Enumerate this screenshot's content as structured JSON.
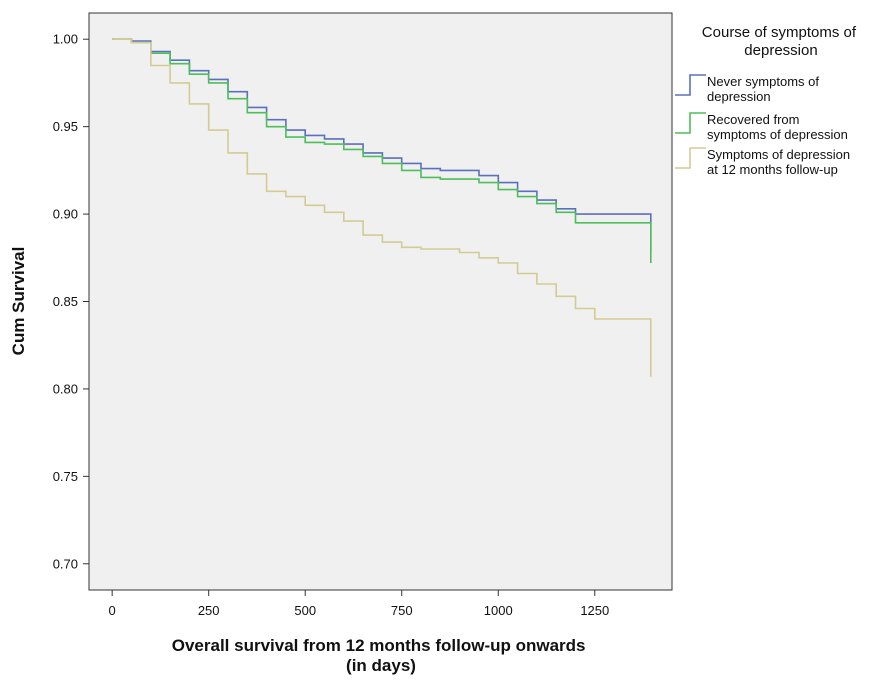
{
  "chart_data": {
    "type": "line",
    "subtype": "step",
    "xlabel_lines": [
      "Overall survival from 12 months follow-up onwards",
      "(in days)"
    ],
    "ylabel": "Cum Survival",
    "xlim": [
      -60,
      1450
    ],
    "ylim": [
      0.685,
      1.015
    ],
    "x_ticks": [
      0,
      250,
      500,
      750,
      1000,
      1250
    ],
    "y_ticks": [
      0.7,
      0.75,
      0.8,
      0.85,
      0.9,
      0.95,
      1.0
    ],
    "y_tick_labels": [
      "0.70",
      "0.75",
      "0.80",
      "0.85",
      "0.90",
      "0.95",
      "1.00"
    ],
    "plot_background": "#f0f0f0",
    "grid": false,
    "legend_position": "right",
    "legend": {
      "title_lines": [
        "Course of symptoms of",
        "depression"
      ],
      "entries": [
        {
          "series": 0,
          "lines": [
            "Never symptoms of",
            "depression"
          ]
        },
        {
          "series": 1,
          "lines": [
            "Recovered from",
            "symptoms of depression"
          ]
        },
        {
          "series": 2,
          "lines": [
            "Symptoms of depression",
            "at 12 months follow-up"
          ]
        }
      ]
    },
    "series": [
      {
        "color": "#5b6fc0",
        "x": [
          0,
          50,
          100,
          150,
          200,
          250,
          300,
          350,
          400,
          450,
          500,
          550,
          600,
          650,
          700,
          750,
          800,
          850,
          900,
          950,
          1000,
          1050,
          1100,
          1150,
          1200,
          1250,
          1300,
          1350,
          1395,
          1395
        ],
        "y": [
          1.0,
          0.999,
          0.993,
          0.988,
          0.982,
          0.977,
          0.97,
          0.961,
          0.954,
          0.948,
          0.945,
          0.943,
          0.94,
          0.935,
          0.932,
          0.929,
          0.926,
          0.925,
          0.925,
          0.922,
          0.918,
          0.913,
          0.908,
          0.903,
          0.9,
          0.9,
          0.9,
          0.9,
          0.9,
          0.878
        ]
      },
      {
        "color": "#4cbf5a",
        "x": [
          0,
          50,
          100,
          150,
          200,
          250,
          300,
          350,
          400,
          450,
          500,
          550,
          600,
          650,
          700,
          750,
          800,
          850,
          900,
          950,
          1000,
          1050,
          1100,
          1150,
          1200,
          1250,
          1300,
          1350,
          1395,
          1395
        ],
        "y": [
          1.0,
          0.998,
          0.992,
          0.986,
          0.98,
          0.975,
          0.966,
          0.958,
          0.95,
          0.944,
          0.941,
          0.94,
          0.937,
          0.933,
          0.929,
          0.925,
          0.921,
          0.92,
          0.92,
          0.918,
          0.914,
          0.91,
          0.906,
          0.901,
          0.895,
          0.895,
          0.895,
          0.895,
          0.895,
          0.872
        ]
      },
      {
        "color": "#d2cc92",
        "x": [
          0,
          50,
          100,
          150,
          200,
          250,
          300,
          350,
          400,
          450,
          500,
          550,
          600,
          650,
          700,
          750,
          800,
          850,
          900,
          950,
          1000,
          1050,
          1100,
          1150,
          1200,
          1250,
          1300,
          1350,
          1395,
          1395
        ],
        "y": [
          1.0,
          0.998,
          0.985,
          0.975,
          0.963,
          0.948,
          0.935,
          0.923,
          0.913,
          0.91,
          0.905,
          0.901,
          0.896,
          0.888,
          0.884,
          0.881,
          0.88,
          0.88,
          0.878,
          0.875,
          0.872,
          0.866,
          0.86,
          0.853,
          0.846,
          0.84,
          0.84,
          0.84,
          0.84,
          0.807
        ]
      }
    ]
  }
}
